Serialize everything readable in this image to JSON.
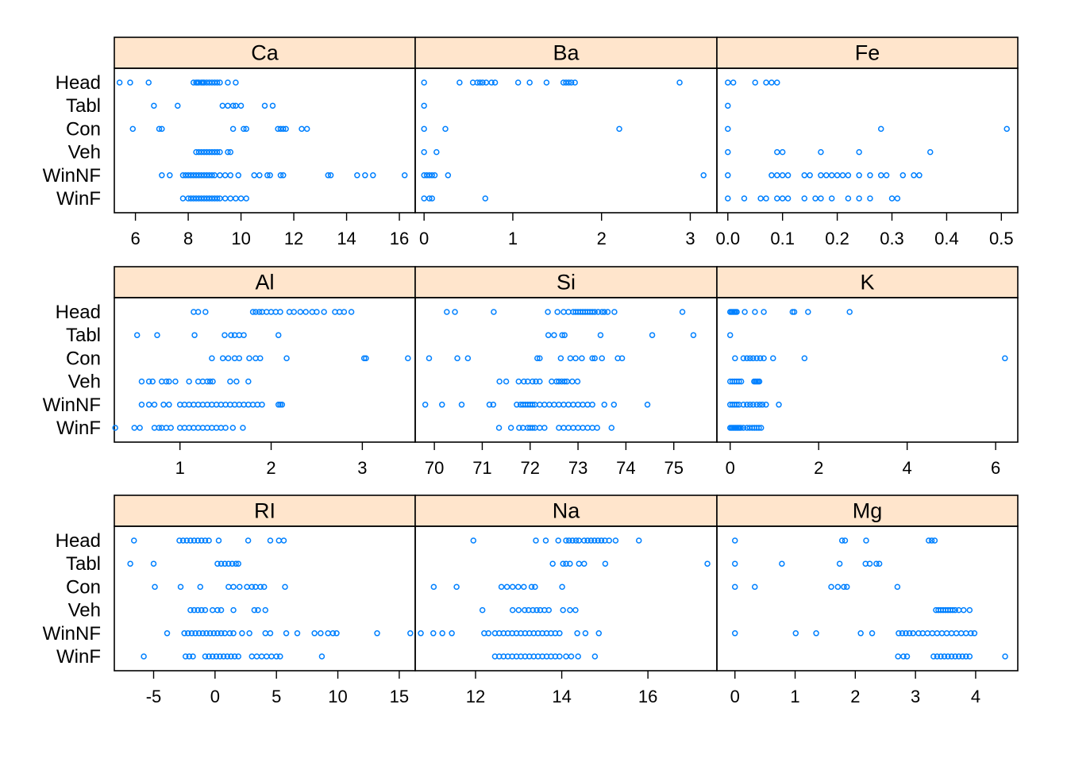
{
  "chart_data": {
    "type": "scatter",
    "layout": "dotplot-trellis",
    "categories": [
      "WinF",
      "WinNF",
      "Veh",
      "Con",
      "Tabl",
      "Head"
    ],
    "point_color": "#0080ff",
    "strip_color": "#ffe5cc",
    "panels": [
      {
        "name": "Ca",
        "xlim": [
          5.2,
          16.6
        ],
        "ticks": [
          6,
          8,
          10,
          12,
          14,
          16
        ],
        "values": {
          "Head": [
            5.4,
            5.8,
            6.5,
            8.2,
            8.3,
            8.35,
            8.4,
            8.5,
            8.55,
            8.6,
            8.7,
            8.8,
            8.9,
            9.0,
            9.1,
            9.2,
            9.5,
            9.8
          ],
          "Tabl": [
            6.7,
            7.6,
            9.3,
            9.5,
            9.7,
            9.8,
            10.0,
            10.9,
            11.2
          ],
          "Con": [
            5.9,
            6.9,
            7.0,
            9.7,
            10.1,
            10.2,
            11.4,
            11.5,
            11.6,
            11.7,
            12.3,
            12.5
          ],
          "Veh": [
            8.3,
            8.4,
            8.5,
            8.6,
            8.7,
            8.8,
            8.9,
            9.0,
            9.1,
            9.2,
            9.5,
            9.6
          ],
          "WinNF": [
            7.0,
            7.3,
            7.8,
            7.9,
            8.0,
            8.1,
            8.2,
            8.3,
            8.4,
            8.5,
            8.6,
            8.7,
            8.8,
            8.9,
            9.0,
            9.2,
            9.4,
            9.6,
            9.9,
            10.5,
            10.7,
            11.0,
            11.1,
            11.5,
            11.6,
            13.3,
            13.4,
            14.4,
            14.7,
            15.0,
            16.2
          ],
          "WinF": [
            7.8,
            8.0,
            8.1,
            8.2,
            8.3,
            8.4,
            8.5,
            8.6,
            8.7,
            8.8,
            8.9,
            9.0,
            9.1,
            9.2,
            9.4,
            9.6,
            9.8,
            10.0,
            10.2
          ]
        }
      },
      {
        "name": "Ba",
        "xlim": [
          -0.1,
          3.3
        ],
        "ticks": [
          0,
          1,
          2,
          3
        ],
        "values": {
          "Head": [
            0.0,
            0.4,
            0.55,
            0.6,
            0.63,
            0.66,
            0.7,
            0.76,
            0.8,
            1.06,
            1.19,
            1.38,
            1.57,
            1.6,
            1.63,
            1.66,
            1.7,
            2.88
          ],
          "Tabl": [
            0.0
          ],
          "Con": [
            0.0,
            0.24,
            2.2
          ],
          "Veh": [
            0.0,
            0.14
          ],
          "WinNF": [
            0.0,
            0.03,
            0.06,
            0.09,
            0.12,
            0.27,
            3.15
          ],
          "WinF": [
            0.0,
            0.06,
            0.09,
            0.69
          ]
        }
      },
      {
        "name": "Fe",
        "xlim": [
          -0.02,
          0.53
        ],
        "ticks": [
          0.0,
          0.1,
          0.2,
          0.3,
          0.4,
          0.5
        ],
        "tick_labels": [
          "0.0",
          "0.1",
          "0.2",
          "0.3",
          "0.4",
          "0.5"
        ],
        "values": {
          "Head": [
            0.0,
            0.01,
            0.05,
            0.07,
            0.08,
            0.09
          ],
          "Tabl": [
            0.0
          ],
          "Con": [
            0.0,
            0.28,
            0.51
          ],
          "Veh": [
            0.0,
            0.09,
            0.1,
            0.17,
            0.24,
            0.37
          ],
          "WinNF": [
            0.0,
            0.08,
            0.09,
            0.1,
            0.11,
            0.14,
            0.15,
            0.17,
            0.18,
            0.19,
            0.2,
            0.21,
            0.22,
            0.24,
            0.26,
            0.28,
            0.29,
            0.32,
            0.34,
            0.35
          ],
          "WinF": [
            0.0,
            0.03,
            0.06,
            0.07,
            0.09,
            0.1,
            0.11,
            0.14,
            0.16,
            0.17,
            0.19,
            0.22,
            0.24,
            0.26,
            0.3,
            0.31
          ]
        }
      },
      {
        "name": "Al",
        "xlim": [
          0.28,
          3.58
        ],
        "ticks": [
          1,
          2,
          3
        ],
        "values": {
          "Head": [
            1.15,
            1.2,
            1.28,
            1.8,
            1.83,
            1.87,
            1.9,
            1.95,
            2.0,
            2.05,
            2.1,
            2.2,
            2.25,
            2.32,
            2.38,
            2.45,
            2.5,
            2.58,
            2.7,
            2.75,
            2.8,
            2.88
          ],
          "Tabl": [
            0.53,
            0.75,
            1.16,
            1.49,
            1.56,
            1.6,
            1.65,
            1.7,
            2.08
          ],
          "Con": [
            1.35,
            1.47,
            1.53,
            1.6,
            1.65,
            1.76,
            1.83,
            1.88,
            2.17,
            3.02,
            3.04,
            3.5
          ],
          "Veh": [
            0.58,
            0.66,
            0.7,
            0.8,
            0.85,
            0.88,
            0.95,
            1.1,
            1.2,
            1.25,
            1.3,
            1.33,
            1.36,
            1.55,
            1.62,
            1.75
          ],
          "WinNF": [
            0.58,
            0.66,
            0.72,
            0.82,
            0.88,
            1.0,
            1.05,
            1.1,
            1.15,
            1.2,
            1.25,
            1.3,
            1.35,
            1.4,
            1.45,
            1.5,
            1.55,
            1.6,
            1.65,
            1.7,
            1.75,
            1.8,
            1.85,
            1.9,
            2.08,
            2.1,
            2.12
          ],
          "WinF": [
            0.29,
            0.5,
            0.56,
            0.72,
            0.77,
            0.8,
            0.85,
            0.9,
            1.0,
            1.05,
            1.1,
            1.15,
            1.2,
            1.25,
            1.3,
            1.35,
            1.4,
            1.45,
            1.5,
            1.58,
            1.69
          ]
        }
      },
      {
        "name": "Si",
        "xlim": [
          69.6,
          75.9
        ],
        "ticks": [
          70,
          71,
          72,
          73,
          74,
          75
        ],
        "values": {
          "Head": [
            70.26,
            70.43,
            71.24,
            72.37,
            72.57,
            72.7,
            72.8,
            72.9,
            72.95,
            73.0,
            73.05,
            73.1,
            73.15,
            73.2,
            73.25,
            73.3,
            73.35,
            73.42,
            73.5,
            73.55,
            73.62,
            73.76,
            75.18
          ],
          "Tabl": [
            72.38,
            72.5,
            72.67,
            72.72,
            73.47,
            74.55,
            75.41
          ],
          "Con": [
            69.89,
            70.48,
            70.7,
            72.15,
            72.2,
            72.64,
            72.84,
            72.95,
            73.08,
            73.3,
            73.35,
            73.5,
            73.83,
            73.92
          ],
          "Veh": [
            71.36,
            71.5,
            71.76,
            71.87,
            71.95,
            72.05,
            72.12,
            72.2,
            72.45,
            72.55,
            72.6,
            72.66,
            72.72,
            72.77,
            72.88,
            72.99
          ],
          "WinNF": [
            69.81,
            70.16,
            70.57,
            71.15,
            71.23,
            71.72,
            71.8,
            71.85,
            71.9,
            71.95,
            72.0,
            72.05,
            72.1,
            72.2,
            72.3,
            72.4,
            72.5,
            72.6,
            72.7,
            72.8,
            72.9,
            73.0,
            73.1,
            73.2,
            73.3,
            73.55,
            73.75,
            74.45
          ],
          "WinF": [
            71.35,
            71.6,
            71.77,
            71.85,
            71.95,
            72.0,
            72.05,
            72.1,
            72.2,
            72.3,
            72.6,
            72.7,
            72.8,
            72.9,
            73.0,
            73.1,
            73.2,
            73.3,
            73.4,
            73.7
          ]
        }
      },
      {
        "name": "K",
        "xlim": [
          -0.3,
          6.5
        ],
        "ticks": [
          0,
          2,
          4,
          6
        ],
        "values": {
          "Head": [
            0.0,
            0.03,
            0.06,
            0.09,
            0.12,
            0.15,
            0.33,
            0.56,
            0.76,
            1.41,
            1.45,
            1.76,
            2.7
          ],
          "Tabl": [
            0.0
          ],
          "Con": [
            0.11,
            0.3,
            0.38,
            0.45,
            0.52,
            0.6,
            0.68,
            0.76,
            0.97,
            1.68,
            6.21
          ],
          "Veh": [
            0.0,
            0.05,
            0.1,
            0.15,
            0.2,
            0.25,
            0.54,
            0.57,
            0.6,
            0.63,
            0.66
          ],
          "WinNF": [
            0.0,
            0.05,
            0.1,
            0.15,
            0.2,
            0.3,
            0.38,
            0.45,
            0.52,
            0.6,
            0.67,
            0.73,
            0.81,
            1.1
          ],
          "WinF": [
            0.0,
            0.03,
            0.06,
            0.09,
            0.12,
            0.15,
            0.18,
            0.21,
            0.24,
            0.3,
            0.38,
            0.44,
            0.5,
            0.55,
            0.6,
            0.65,
            0.7
          ]
        }
      },
      {
        "name": "RI",
        "xlim": [
          -8.2,
          16.3
        ],
        "ticks": [
          -5,
          0,
          5,
          10,
          15
        ],
        "values": {
          "Head": [
            -6.6,
            -2.9,
            -2.6,
            -2.3,
            -2.0,
            -1.7,
            -1.4,
            -1.1,
            -0.8,
            -0.5,
            0.3,
            2.7,
            4.5,
            5.2,
            5.6
          ],
          "Tabl": [
            -6.9,
            -5.0,
            0.2,
            0.5,
            0.8,
            1.1,
            1.4,
            1.7,
            1.9
          ],
          "Con": [
            -4.9,
            -2.8,
            -1.2,
            1.1,
            1.5,
            2.0,
            2.6,
            3.0,
            3.3,
            3.7,
            4.0,
            5.7
          ],
          "Veh": [
            -2.0,
            -1.7,
            -1.4,
            -1.1,
            -0.8,
            -0.2,
            0.2,
            0.5,
            1.5,
            3.2,
            3.5,
            4.1
          ],
          "WinNF": [
            -3.9,
            -2.5,
            -2.2,
            -1.9,
            -1.6,
            -1.3,
            -1.0,
            -0.7,
            -0.4,
            -0.1,
            0.2,
            0.5,
            0.8,
            1.2,
            1.5,
            2.2,
            2.8,
            4.1,
            4.5,
            5.8,
            6.7,
            8.1,
            8.6,
            9.2,
            9.6,
            9.9,
            13.2,
            15.9
          ],
          "WinF": [
            -5.8,
            -2.4,
            -2.1,
            -1.8,
            -0.8,
            -0.5,
            -0.2,
            0.1,
            0.4,
            0.7,
            1.0,
            1.3,
            1.6,
            1.9,
            3.0,
            3.4,
            3.8,
            4.2,
            4.6,
            5.0,
            5.3,
            8.7
          ]
        }
      },
      {
        "name": "Na",
        "xlim": [
          10.6,
          17.6
        ],
        "ticks": [
          12,
          14,
          16
        ],
        "values": {
          "Head": [
            11.95,
            13.4,
            13.63,
            13.92,
            14.1,
            14.17,
            14.25,
            14.33,
            14.4,
            14.52,
            14.6,
            14.68,
            14.76,
            14.84,
            14.92,
            15.0,
            15.1,
            15.25,
            15.79
          ],
          "Tabl": [
            13.79,
            14.03,
            14.1,
            14.19,
            14.4,
            14.52,
            15.01,
            17.38
          ],
          "Con": [
            11.03,
            11.56,
            12.6,
            12.73,
            12.86,
            12.99,
            13.12,
            13.3,
            13.38,
            14.01
          ],
          "Veh": [
            12.16,
            12.86,
            13.0,
            13.14,
            13.23,
            13.33,
            13.42,
            13.5,
            13.6,
            13.7,
            14.03,
            14.19,
            14.32
          ],
          "WinNF": [
            10.73,
            11.02,
            11.23,
            11.45,
            12.2,
            12.3,
            12.45,
            12.55,
            12.65,
            12.75,
            12.85,
            12.95,
            13.05,
            13.15,
            13.25,
            13.35,
            13.45,
            13.55,
            13.65,
            13.75,
            13.85,
            13.95,
            14.36,
            14.55,
            14.86
          ],
          "WinF": [
            12.45,
            12.55,
            12.65,
            12.75,
            12.85,
            12.95,
            13.05,
            13.15,
            13.25,
            13.35,
            13.45,
            13.55,
            13.65,
            13.75,
            13.85,
            13.95,
            14.1,
            14.22,
            14.38,
            14.77
          ]
        }
      },
      {
        "name": "Mg",
        "xlim": [
          -0.3,
          4.7
        ],
        "ticks": [
          0,
          1,
          2,
          3,
          4
        ],
        "values": {
          "Head": [
            0.0,
            1.78,
            1.83,
            2.18,
            3.22,
            3.27,
            3.32
          ],
          "Tabl": [
            0.0,
            0.78,
            1.74,
            2.17,
            2.24,
            2.35,
            2.4
          ],
          "Con": [
            0.0,
            0.33,
            1.6,
            1.71,
            1.81,
            1.86,
            2.7
          ],
          "Veh": [
            3.34,
            3.38,
            3.42,
            3.46,
            3.5,
            3.54,
            3.58,
            3.62,
            3.66,
            3.72,
            3.8,
            3.9
          ],
          "WinNF": [
            0.0,
            1.01,
            1.35,
            2.09,
            2.28,
            2.72,
            2.78,
            2.84,
            2.9,
            2.96,
            3.05,
            3.12,
            3.2,
            3.28,
            3.36,
            3.44,
            3.52,
            3.6,
            3.68,
            3.76,
            3.84,
            3.92,
            3.98
          ],
          "WinF": [
            2.71,
            2.8,
            2.86,
            3.3,
            3.36,
            3.42,
            3.48,
            3.54,
            3.6,
            3.66,
            3.72,
            3.78,
            3.84,
            3.9,
            4.49
          ]
        }
      }
    ]
  }
}
